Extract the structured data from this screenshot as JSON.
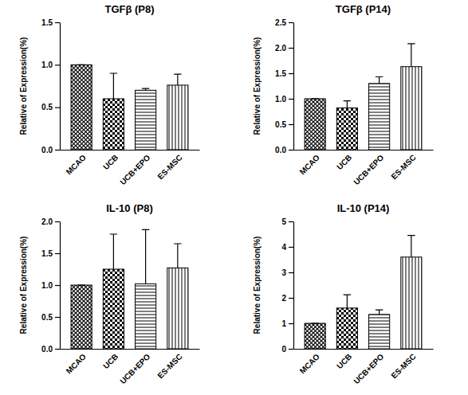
{
  "chart_data": [
    {
      "type": "bar",
      "title": "TGFβ (P8)",
      "y_label": "Relative of Expression(%)",
      "categories": [
        "MCAO",
        "UCB",
        "UCB+EPO",
        "ES-MSC"
      ],
      "values": [
        1.0,
        0.6,
        0.7,
        0.76
      ],
      "errors": [
        0,
        0.3,
        0.02,
        0.13
      ],
      "color": "#000000",
      "ylim": [
        0,
        1.5
      ],
      "yticks": [
        {
          "value": 0,
          "label": "0.0"
        },
        {
          "value": 0.5,
          "label": "0.5"
        },
        {
          "value": 1,
          "label": "1.0"
        },
        {
          "value": 1.5,
          "label": "1.5"
        }
      ]
    },
    {
      "type": "bar",
      "title": "TGFβ (P14)",
      "y_label": "Relative of Expression(%)",
      "categories": [
        "MCAO",
        "UCB",
        "UCB+EPO",
        "ES-MSC"
      ],
      "values": [
        1.0,
        0.82,
        1.3,
        1.63
      ],
      "errors": [
        0,
        0.14,
        0.13,
        0.45
      ],
      "color": "#000000",
      "ylim": [
        0,
        2.5
      ],
      "yticks": [
        {
          "value": 0,
          "label": "0.0"
        },
        {
          "value": 0.5,
          "label": "0.5"
        },
        {
          "value": 1,
          "label": "1.0"
        },
        {
          "value": 1.5,
          "label": "1.5"
        },
        {
          "value": 2,
          "label": "2.0"
        },
        {
          "value": 2.5,
          "label": "2.5"
        }
      ]
    },
    {
      "type": "bar",
      "title": "IL-10 (P8)",
      "y_label": "Relative of Expression(%)",
      "categories": [
        "MCAO",
        "UCB",
        "UCB+EPO",
        "ES-MSC"
      ],
      "values": [
        1.0,
        1.25,
        1.02,
        1.27
      ],
      "errors": [
        0,
        0.55,
        0.85,
        0.38
      ],
      "color": "#000000",
      "ylim": [
        0,
        2
      ],
      "yticks": [
        {
          "value": 0,
          "label": "0.0"
        },
        {
          "value": 0.5,
          "label": "0.5"
        },
        {
          "value": 1,
          "label": "1.0"
        },
        {
          "value": 1.5,
          "label": "1.5"
        },
        {
          "value": 2,
          "label": "2.0"
        }
      ]
    },
    {
      "type": "bar",
      "title": "IL-10 (P14)",
      "y_label": "Relative of Expression(%)",
      "categories": [
        "MCAO",
        "UCB",
        "UCB+EPO",
        "ES-MSC"
      ],
      "values": [
        1.0,
        1.6,
        1.35,
        3.6
      ],
      "errors": [
        0,
        0.52,
        0.18,
        0.85
      ],
      "color": "#000000",
      "ylim": [
        0,
        5
      ],
      "yticks": [
        0,
        1,
        2,
        3,
        4,
        5
      ]
    }
  ]
}
